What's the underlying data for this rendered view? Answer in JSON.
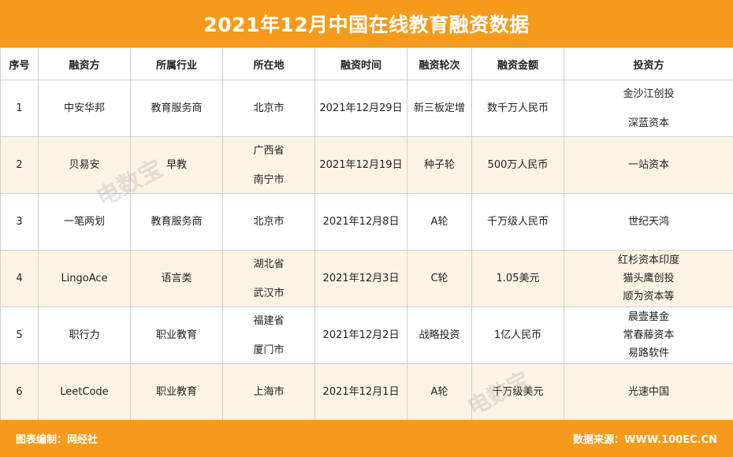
{
  "title": "2021年12月中国在线教育融资数据",
  "chart_data": {
    "type": "table",
    "headers": [
      "序号",
      "融资方",
      "所属行业",
      "所在地",
      "融资时间",
      "融资轮次",
      "融资金额",
      "投资方"
    ],
    "rows": [
      {
        "no": "1",
        "company": "中安华邦",
        "industry": "教育服务商",
        "location": [
          "北京市"
        ],
        "date": "2021年12月29日",
        "round": "新三板定增",
        "amount": "数千万人民币",
        "investors": [
          "金沙江创投",
          "深蓝资本"
        ]
      },
      {
        "no": "2",
        "company": "贝易安",
        "industry": "早教",
        "location": [
          "广西省",
          "南宁市"
        ],
        "date": "2021年12月19日",
        "round": "种子轮",
        "amount": "500万人民币",
        "investors": [
          "一站资本"
        ]
      },
      {
        "no": "3",
        "company": "一笔两划",
        "industry": "教育服务商",
        "location": [
          "北京市"
        ],
        "date": "2021年12月8日",
        "round": "A轮",
        "amount": "千万级人民币",
        "investors": [
          "世纪天鸿"
        ]
      },
      {
        "no": "4",
        "company": "LingoAce",
        "industry": "语言类",
        "location": [
          "湖北省",
          "武汉市"
        ],
        "date": "2021年12月3日",
        "round": "C轮",
        "amount": "1.05美元",
        "investors": [
          "红杉资本印度",
          "猫头鹰创投",
          "顺为资本等"
        ]
      },
      {
        "no": "5",
        "company": "职行力",
        "industry": "职业教育",
        "location": [
          "福建省",
          "厦门市"
        ],
        "date": "2021年12月2日",
        "round": "战略投资",
        "amount": "1亿人民币",
        "investors": [
          "晨壹基金",
          "常春藤资本",
          "易路软件"
        ]
      },
      {
        "no": "6",
        "company": "LeetCode",
        "industry": "职业教育",
        "location": [
          "上海市"
        ],
        "date": "2021年12月1日",
        "round": "A轮",
        "amount": "千万级美元",
        "investors": [
          "光速中国"
        ]
      }
    ]
  },
  "footer": {
    "left": "图表编制：网经社",
    "right": "数据来源：WWW.100EC.CN"
  },
  "watermark": "电数宝",
  "colors": {
    "accent": "#f59a1b",
    "row_alt": "#fdf3e4",
    "border": "#cfcfcf"
  }
}
